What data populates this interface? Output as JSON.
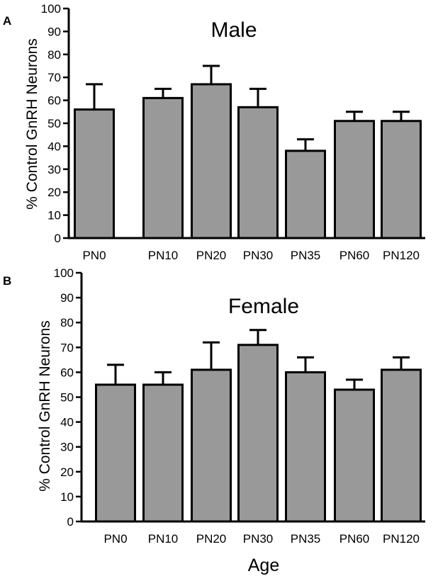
{
  "chart_data": [
    {
      "panel": "A",
      "type": "bar",
      "title": "Male",
      "xlabel": "",
      "ylabel": "% Control GnRH Neurons",
      "ylim": [
        0,
        100
      ],
      "yticks": [
        0,
        10,
        20,
        30,
        40,
        50,
        60,
        70,
        80,
        90,
        100
      ],
      "categories": [
        "PN0",
        "PN10",
        "PN20",
        "PN30",
        "PN35",
        "PN60",
        "PN120"
      ],
      "values": [
        56,
        61,
        67,
        57,
        38,
        51,
        51
      ],
      "errors": [
        11,
        4,
        8,
        8,
        5,
        4,
        4
      ],
      "bar_color": "#999999"
    },
    {
      "panel": "B",
      "type": "bar",
      "title": "Female",
      "xlabel": "Age",
      "ylabel": "% Control GnRH Neurons",
      "ylim": [
        0,
        100
      ],
      "yticks": [
        0,
        10,
        20,
        30,
        40,
        50,
        60,
        70,
        80,
        90,
        100
      ],
      "categories": [
        "PN0",
        "PN10",
        "PN20",
        "PN30",
        "PN35",
        "PN60",
        "PN120"
      ],
      "values": [
        55,
        55,
        61,
        71,
        60,
        53,
        61
      ],
      "errors": [
        8,
        5,
        11,
        6,
        6,
        4,
        5
      ],
      "bar_color": "#999999"
    }
  ]
}
